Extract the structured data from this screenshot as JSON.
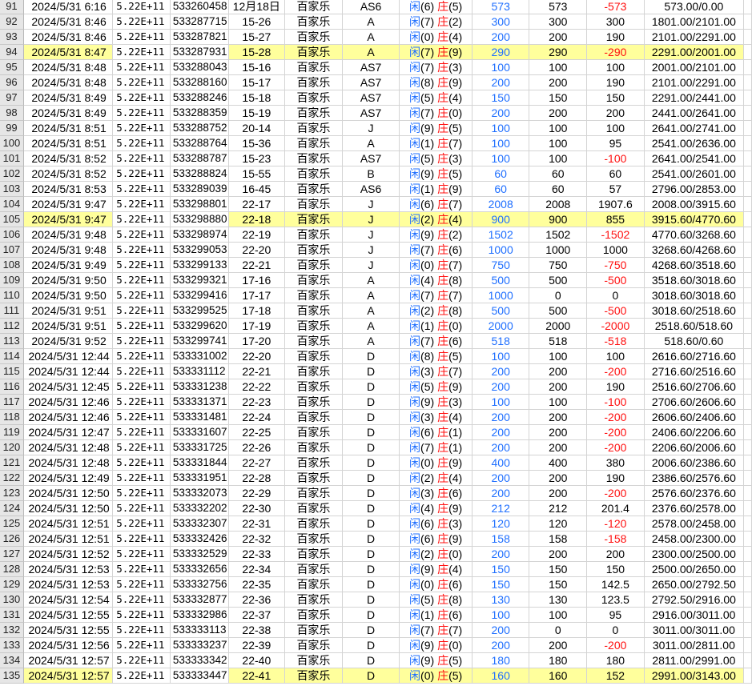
{
  "colors": {
    "accent_blue": "#1f6fff",
    "negative_red": "#ff1010",
    "highlight": "#ffff9c",
    "header_bg": "#e6e6e6"
  },
  "labels": {
    "player": "闲",
    "banker": "庄"
  },
  "rows": [
    {
      "n": "91",
      "date": "2024/5/31 6:16",
      "sci": "5.22E+11",
      "id": "533260458",
      "code": "12月18日",
      "game": "百家乐",
      "table": "AS6",
      "p": "6",
      "b": "5",
      "bet": "573",
      "amt": "573",
      "pl": "-573",
      "bal": "573.00/0.00",
      "hl": false
    },
    {
      "n": "92",
      "date": "2024/5/31 8:46",
      "sci": "5.22E+11",
      "id": "533287715",
      "code": "15-26",
      "game": "百家乐",
      "table": "A",
      "p": "7",
      "b": "2",
      "bet": "300",
      "amt": "300",
      "pl": "300",
      "bal": "1801.00/2101.00",
      "hl": false
    },
    {
      "n": "93",
      "date": "2024/5/31 8:46",
      "sci": "5.22E+11",
      "id": "533287821",
      "code": "15-27",
      "game": "百家乐",
      "table": "A",
      "p": "0",
      "b": "4",
      "bet": "200",
      "amt": "200",
      "pl": "190",
      "bal": "2101.00/2291.00",
      "hl": false
    },
    {
      "n": "94",
      "date": "2024/5/31 8:47",
      "sci": "5.22E+11",
      "id": "533287931",
      "code": "15-28",
      "game": "百家乐",
      "table": "A",
      "p": "7",
      "b": "9",
      "bet": "290",
      "amt": "290",
      "pl": "-290",
      "bal": "2291.00/2001.00",
      "hl": true
    },
    {
      "n": "95",
      "date": "2024/5/31 8:48",
      "sci": "5.22E+11",
      "id": "533288043",
      "code": "15-16",
      "game": "百家乐",
      "table": "AS7",
      "p": "7",
      "b": "3",
      "bet": "100",
      "amt": "100",
      "pl": "100",
      "bal": "2001.00/2101.00",
      "hl": false
    },
    {
      "n": "96",
      "date": "2024/5/31 8:48",
      "sci": "5.22E+11",
      "id": "533288160",
      "code": "15-17",
      "game": "百家乐",
      "table": "AS7",
      "p": "8",
      "b": "9",
      "bet": "200",
      "amt": "200",
      "pl": "190",
      "bal": "2101.00/2291.00",
      "hl": false
    },
    {
      "n": "97",
      "date": "2024/5/31 8:49",
      "sci": "5.22E+11",
      "id": "533288246",
      "code": "15-18",
      "game": "百家乐",
      "table": "AS7",
      "p": "5",
      "b": "4",
      "bet": "150",
      "amt": "150",
      "pl": "150",
      "bal": "2291.00/2441.00",
      "hl": false
    },
    {
      "n": "98",
      "date": "2024/5/31 8:49",
      "sci": "5.22E+11",
      "id": "533288359",
      "code": "15-19",
      "game": "百家乐",
      "table": "AS7",
      "p": "7",
      "b": "0",
      "bet": "200",
      "amt": "200",
      "pl": "200",
      "bal": "2441.00/2641.00",
      "hl": false
    },
    {
      "n": "99",
      "date": "2024/5/31 8:51",
      "sci": "5.22E+11",
      "id": "533288752",
      "code": "20-14",
      "game": "百家乐",
      "table": "J",
      "p": "9",
      "b": "5",
      "bet": "100",
      "amt": "100",
      "pl": "100",
      "bal": "2641.00/2741.00",
      "hl": false
    },
    {
      "n": "100",
      "date": "2024/5/31 8:51",
      "sci": "5.22E+11",
      "id": "533288764",
      "code": "15-36",
      "game": "百家乐",
      "table": "A",
      "p": "1",
      "b": "7",
      "bet": "100",
      "amt": "100",
      "pl": "95",
      "bal": "2541.00/2636.00",
      "hl": false
    },
    {
      "n": "101",
      "date": "2024/5/31 8:52",
      "sci": "5.22E+11",
      "id": "533288787",
      "code": "15-23",
      "game": "百家乐",
      "table": "AS7",
      "p": "5",
      "b": "3",
      "bet": "100",
      "amt": "100",
      "pl": "-100",
      "bal": "2641.00/2541.00",
      "hl": false
    },
    {
      "n": "102",
      "date": "2024/5/31 8:52",
      "sci": "5.22E+11",
      "id": "533288824",
      "code": "15-55",
      "game": "百家乐",
      "table": "B",
      "p": "9",
      "b": "5",
      "bet": "60",
      "amt": "60",
      "pl": "60",
      "bal": "2541.00/2601.00",
      "hl": false
    },
    {
      "n": "103",
      "date": "2024/5/31 8:53",
      "sci": "5.22E+11",
      "id": "533289039",
      "code": "16-45",
      "game": "百家乐",
      "table": "AS6",
      "p": "1",
      "b": "9",
      "bet": "60",
      "amt": "60",
      "pl": "57",
      "bal": "2796.00/2853.00",
      "hl": false
    },
    {
      "n": "104",
      "date": "2024/5/31 9:47",
      "sci": "5.22E+11",
      "id": "533298801",
      "code": "22-17",
      "game": "百家乐",
      "table": "J",
      "p": "6",
      "b": "7",
      "bet": "2008",
      "amt": "2008",
      "pl": "1907.6",
      "bal": "2008.00/3915.60",
      "hl": false
    },
    {
      "n": "105",
      "date": "2024/5/31 9:47",
      "sci": "5.22E+11",
      "id": "533298880",
      "code": "22-18",
      "game": "百家乐",
      "table": "J",
      "p": "2",
      "b": "4",
      "bet": "900",
      "amt": "900",
      "pl": "855",
      "bal": "3915.60/4770.60",
      "hl": true
    },
    {
      "n": "106",
      "date": "2024/5/31 9:48",
      "sci": "5.22E+11",
      "id": "533298974",
      "code": "22-19",
      "game": "百家乐",
      "table": "J",
      "p": "9",
      "b": "2",
      "bet": "1502",
      "amt": "1502",
      "pl": "-1502",
      "bal": "4770.60/3268.60",
      "hl": false
    },
    {
      "n": "107",
      "date": "2024/5/31 9:48",
      "sci": "5.22E+11",
      "id": "533299053",
      "code": "22-20",
      "game": "百家乐",
      "table": "J",
      "p": "7",
      "b": "6",
      "bet": "1000",
      "amt": "1000",
      "pl": "1000",
      "bal": "3268.60/4268.60",
      "hl": false
    },
    {
      "n": "108",
      "date": "2024/5/31 9:49",
      "sci": "5.22E+11",
      "id": "533299133",
      "code": "22-21",
      "game": "百家乐",
      "table": "J",
      "p": "0",
      "b": "7",
      "bet": "750",
      "amt": "750",
      "pl": "-750",
      "bal": "4268.60/3518.60",
      "hl": false
    },
    {
      "n": "109",
      "date": "2024/5/31 9:50",
      "sci": "5.22E+11",
      "id": "533299321",
      "code": "17-16",
      "game": "百家乐",
      "table": "A",
      "p": "4",
      "b": "8",
      "bet": "500",
      "amt": "500",
      "pl": "-500",
      "bal": "3518.60/3018.60",
      "hl": false
    },
    {
      "n": "110",
      "date": "2024/5/31 9:50",
      "sci": "5.22E+11",
      "id": "533299416",
      "code": "17-17",
      "game": "百家乐",
      "table": "A",
      "p": "7",
      "b": "7",
      "bet": "1000",
      "amt": "0",
      "pl": "0",
      "bal": "3018.60/3018.60",
      "hl": false
    },
    {
      "n": "111",
      "date": "2024/5/31 9:51",
      "sci": "5.22E+11",
      "id": "533299525",
      "code": "17-18",
      "game": "百家乐",
      "table": "A",
      "p": "2",
      "b": "8",
      "bet": "500",
      "amt": "500",
      "pl": "-500",
      "bal": "3018.60/2518.60",
      "hl": false
    },
    {
      "n": "112",
      "date": "2024/5/31 9:51",
      "sci": "5.22E+11",
      "id": "533299620",
      "code": "17-19",
      "game": "百家乐",
      "table": "A",
      "p": "1",
      "b": "0",
      "bet": "2000",
      "amt": "2000",
      "pl": "-2000",
      "bal": "2518.60/518.60",
      "hl": false
    },
    {
      "n": "113",
      "date": "2024/5/31 9:52",
      "sci": "5.22E+11",
      "id": "533299741",
      "code": "17-20",
      "game": "百家乐",
      "table": "A",
      "p": "7",
      "b": "6",
      "bet": "518",
      "amt": "518",
      "pl": "-518",
      "bal": "518.60/0.60",
      "hl": false
    },
    {
      "n": "114",
      "date": "2024/5/31 12:44",
      "sci": "5.22E+11",
      "id": "533331002",
      "code": "22-20",
      "game": "百家乐",
      "table": "D",
      "p": "8",
      "b": "5",
      "bet": "100",
      "amt": "100",
      "pl": "100",
      "bal": "2616.60/2716.60",
      "hl": false
    },
    {
      "n": "115",
      "date": "2024/5/31 12:44",
      "sci": "5.22E+11",
      "id": "533331112",
      "code": "22-21",
      "game": "百家乐",
      "table": "D",
      "p": "3",
      "b": "7",
      "bet": "200",
      "amt": "200",
      "pl": "-200",
      "bal": "2716.60/2516.60",
      "hl": false
    },
    {
      "n": "116",
      "date": "2024/5/31 12:45",
      "sci": "5.22E+11",
      "id": "533331238",
      "code": "22-22",
      "game": "百家乐",
      "table": "D",
      "p": "5",
      "b": "9",
      "bet": "200",
      "amt": "200",
      "pl": "190",
      "bal": "2516.60/2706.60",
      "hl": false
    },
    {
      "n": "117",
      "date": "2024/5/31 12:46",
      "sci": "5.22E+11",
      "id": "533331371",
      "code": "22-23",
      "game": "百家乐",
      "table": "D",
      "p": "9",
      "b": "3",
      "bet": "100",
      "amt": "100",
      "pl": "-100",
      "bal": "2706.60/2606.60",
      "hl": false
    },
    {
      "n": "118",
      "date": "2024/5/31 12:46",
      "sci": "5.22E+11",
      "id": "533331481",
      "code": "22-24",
      "game": "百家乐",
      "table": "D",
      "p": "3",
      "b": "4",
      "bet": "200",
      "amt": "200",
      "pl": "-200",
      "bal": "2606.60/2406.60",
      "hl": false
    },
    {
      "n": "119",
      "date": "2024/5/31 12:47",
      "sci": "5.22E+11",
      "id": "533331607",
      "code": "22-25",
      "game": "百家乐",
      "table": "D",
      "p": "6",
      "b": "1",
      "bet": "200",
      "amt": "200",
      "pl": "-200",
      "bal": "2406.60/2206.60",
      "hl": false
    },
    {
      "n": "120",
      "date": "2024/5/31 12:48",
      "sci": "5.22E+11",
      "id": "533331725",
      "code": "22-26",
      "game": "百家乐",
      "table": "D",
      "p": "7",
      "b": "1",
      "bet": "200",
      "amt": "200",
      "pl": "-200",
      "bal": "2206.60/2006.60",
      "hl": false
    },
    {
      "n": "121",
      "date": "2024/5/31 12:48",
      "sci": "5.22E+11",
      "id": "533331844",
      "code": "22-27",
      "game": "百家乐",
      "table": "D",
      "p": "0",
      "b": "9",
      "bet": "400",
      "amt": "400",
      "pl": "380",
      "bal": "2006.60/2386.60",
      "hl": false
    },
    {
      "n": "122",
      "date": "2024/5/31 12:49",
      "sci": "5.22E+11",
      "id": "533331951",
      "code": "22-28",
      "game": "百家乐",
      "table": "D",
      "p": "2",
      "b": "4",
      "bet": "200",
      "amt": "200",
      "pl": "190",
      "bal": "2386.60/2576.60",
      "hl": false
    },
    {
      "n": "123",
      "date": "2024/5/31 12:50",
      "sci": "5.22E+11",
      "id": "533332073",
      "code": "22-29",
      "game": "百家乐",
      "table": "D",
      "p": "3",
      "b": "6",
      "bet": "200",
      "amt": "200",
      "pl": "-200",
      "bal": "2576.60/2376.60",
      "hl": false
    },
    {
      "n": "124",
      "date": "2024/5/31 12:50",
      "sci": "5.22E+11",
      "id": "533332202",
      "code": "22-30",
      "game": "百家乐",
      "table": "D",
      "p": "4",
      "b": "9",
      "bet": "212",
      "amt": "212",
      "pl": "201.4",
      "bal": "2376.60/2578.00",
      "hl": false
    },
    {
      "n": "125",
      "date": "2024/5/31 12:51",
      "sci": "5.22E+11",
      "id": "533332307",
      "code": "22-31",
      "game": "百家乐",
      "table": "D",
      "p": "6",
      "b": "3",
      "bet": "120",
      "amt": "120",
      "pl": "-120",
      "bal": "2578.00/2458.00",
      "hl": false
    },
    {
      "n": "126",
      "date": "2024/5/31 12:51",
      "sci": "5.22E+11",
      "id": "533332426",
      "code": "22-32",
      "game": "百家乐",
      "table": "D",
      "p": "6",
      "b": "9",
      "bet": "158",
      "amt": "158",
      "pl": "-158",
      "bal": "2458.00/2300.00",
      "hl": false
    },
    {
      "n": "127",
      "date": "2024/5/31 12:52",
      "sci": "5.22E+11",
      "id": "533332529",
      "code": "22-33",
      "game": "百家乐",
      "table": "D",
      "p": "2",
      "b": "0",
      "bet": "200",
      "amt": "200",
      "pl": "200",
      "bal": "2300.00/2500.00",
      "hl": false
    },
    {
      "n": "128",
      "date": "2024/5/31 12:53",
      "sci": "5.22E+11",
      "id": "533332656",
      "code": "22-34",
      "game": "百家乐",
      "table": "D",
      "p": "9",
      "b": "4",
      "bet": "150",
      "amt": "150",
      "pl": "150",
      "bal": "2500.00/2650.00",
      "hl": false
    },
    {
      "n": "129",
      "date": "2024/5/31 12:53",
      "sci": "5.22E+11",
      "id": "533332756",
      "code": "22-35",
      "game": "百家乐",
      "table": "D",
      "p": "0",
      "b": "6",
      "bet": "150",
      "amt": "150",
      "pl": "142.5",
      "bal": "2650.00/2792.50",
      "hl": false
    },
    {
      "n": "130",
      "date": "2024/5/31 12:54",
      "sci": "5.22E+11",
      "id": "533332877",
      "code": "22-36",
      "game": "百家乐",
      "table": "D",
      "p": "5",
      "b": "8",
      "bet": "130",
      "amt": "130",
      "pl": "123.5",
      "bal": "2792.50/2916.00",
      "hl": false
    },
    {
      "n": "131",
      "date": "2024/5/31 12:55",
      "sci": "5.22E+11",
      "id": "533332986",
      "code": "22-37",
      "game": "百家乐",
      "table": "D",
      "p": "1",
      "b": "6",
      "bet": "100",
      "amt": "100",
      "pl": "95",
      "bal": "2916.00/3011.00",
      "hl": false
    },
    {
      "n": "132",
      "date": "2024/5/31 12:55",
      "sci": "5.22E+11",
      "id": "533333113",
      "code": "22-38",
      "game": "百家乐",
      "table": "D",
      "p": "7",
      "b": "7",
      "bet": "200",
      "amt": "0",
      "pl": "0",
      "bal": "3011.00/3011.00",
      "hl": false
    },
    {
      "n": "133",
      "date": "2024/5/31 12:56",
      "sci": "5.22E+11",
      "id": "533333237",
      "code": "22-39",
      "game": "百家乐",
      "table": "D",
      "p": "9",
      "b": "0",
      "bet": "200",
      "amt": "200",
      "pl": "-200",
      "bal": "3011.00/2811.00",
      "hl": false
    },
    {
      "n": "134",
      "date": "2024/5/31 12:57",
      "sci": "5.22E+11",
      "id": "533333342",
      "code": "22-40",
      "game": "百家乐",
      "table": "D",
      "p": "9",
      "b": "5",
      "bet": "180",
      "amt": "180",
      "pl": "180",
      "bal": "2811.00/2991.00",
      "hl": false
    },
    {
      "n": "135",
      "date": "2024/5/31 12:57",
      "sci": "5.22E+11",
      "id": "533333447",
      "code": "22-41",
      "game": "百家乐",
      "table": "D",
      "p": "0",
      "b": "5",
      "bet": "160",
      "amt": "160",
      "pl": "152",
      "bal": "2991.00/3143.00",
      "hl": true
    }
  ]
}
